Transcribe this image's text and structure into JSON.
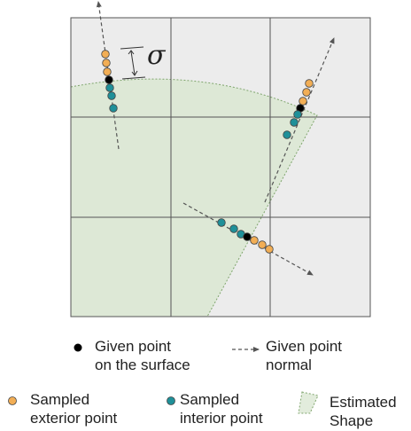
{
  "diagram": {
    "sigma_symbol": "σ",
    "colors": {
      "grid_bg": "#ececec",
      "grid_line": "#555555",
      "shape_fill": "#dde8d6",
      "exterior": "#f2ae55",
      "interior": "#1f9099",
      "surface": "#000000",
      "normal": "#555555"
    }
  },
  "legend": {
    "surface_point": {
      "line1": "Given point",
      "line2": "on the surface"
    },
    "normal": {
      "line1": "Given point",
      "line2": "normal"
    },
    "exterior": {
      "line1": "Sampled",
      "line2": "exterior point"
    },
    "interior": {
      "line1": "Sampled",
      "line2": "interior point"
    },
    "shape": {
      "line1": "Estimated",
      "line2": "Shape"
    }
  }
}
